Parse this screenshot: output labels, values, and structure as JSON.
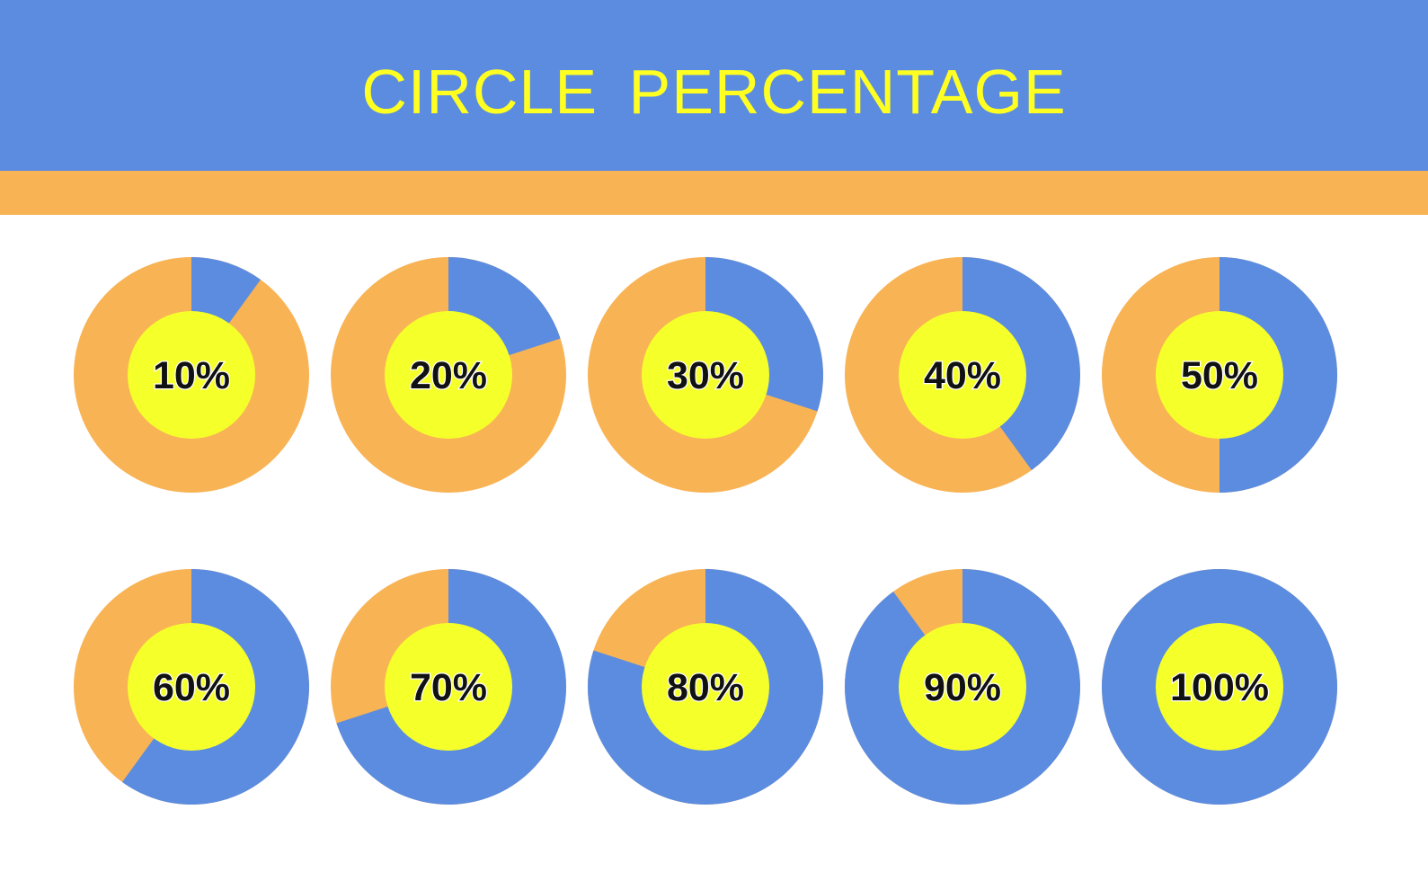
{
  "header": {
    "title": "CIRCLE PERCENTAGE"
  },
  "colors": {
    "header_band": "#5b8ce0",
    "accent_band": "#f8b355",
    "title_text": "#ffff22",
    "filled": "#5b8ce0",
    "remaining": "#f8b355",
    "center": "#f5ff2a",
    "label_text": "#111111"
  },
  "chart_data": {
    "type": "pie",
    "layout": "2 rows x 5 columns",
    "start_angle": "12 o'clock, clockwise",
    "charts": [
      {
        "label": "10%",
        "value": 10
      },
      {
        "label": "20%",
        "value": 20
      },
      {
        "label": "30%",
        "value": 30
      },
      {
        "label": "40%",
        "value": 40
      },
      {
        "label": "50%",
        "value": 50
      },
      {
        "label": "60%",
        "value": 60
      },
      {
        "label": "70%",
        "value": 70
      },
      {
        "label": "80%",
        "value": 80
      },
      {
        "label": "90%",
        "value": 90
      },
      {
        "label": "100%",
        "value": 100
      }
    ]
  }
}
